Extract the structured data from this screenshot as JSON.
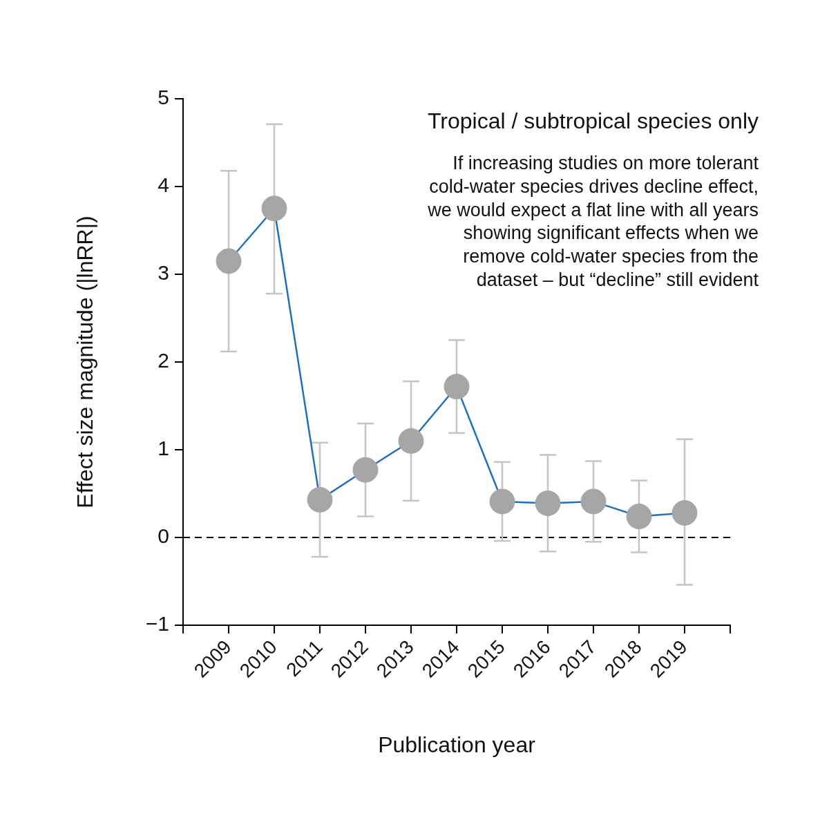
{
  "chart_data": {
    "type": "line",
    "title": "Tropical / subtropical species only",
    "annotation": [
      "If increasing studies on more tolerant",
      "cold-water species drives decline effect,",
      "we would expect a flat line with all years",
      "showing significant effects when we",
      "remove cold-water species from the",
      "dataset – but “decline” still evident"
    ],
    "x_label": "Publication year",
    "y_label": "Effect size magnitude (|lnRR|)",
    "categories": [
      null,
      "2009",
      "2010",
      "2011",
      "2012",
      "2013",
      "2014",
      "2015",
      "2016",
      "2017",
      "2018",
      "2019",
      null
    ],
    "values": [
      null,
      3.15,
      3.75,
      0.43,
      0.77,
      1.1,
      1.72,
      0.41,
      0.39,
      0.41,
      0.24,
      0.28,
      null
    ],
    "ci_low": [
      null,
      2.12,
      2.78,
      -0.22,
      0.24,
      0.42,
      1.19,
      -0.04,
      -0.16,
      -0.05,
      -0.17,
      -0.54,
      null
    ],
    "ci_high": [
      null,
      4.18,
      4.71,
      1.08,
      1.3,
      1.78,
      2.25,
      0.86,
      0.94,
      0.87,
      0.65,
      1.12,
      null
    ],
    "color": "#1f6fbf",
    "marker": "circle",
    "line_style": "solid",
    "ylim": [
      -1,
      5
    ],
    "yticks": [
      {
        "value": -1,
        "label": "−1"
      },
      0,
      1,
      2,
      3,
      4,
      5
    ],
    "reference_lines": [
      {
        "y": 0,
        "line_style": "dashed"
      }
    ],
    "grid": false
  }
}
